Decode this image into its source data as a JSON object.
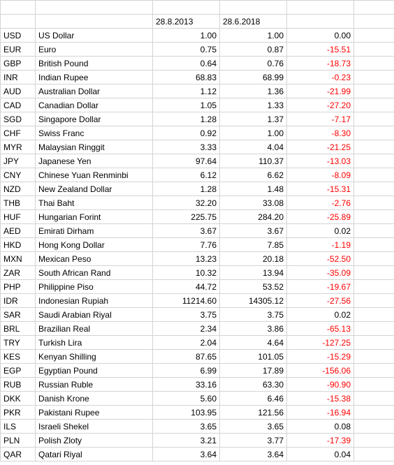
{
  "columns": {
    "code_width": 50,
    "name_width": 168,
    "val_width": 96,
    "diff_width": 96,
    "tail_width": 58
  },
  "header": {
    "date1": "28.8.2013",
    "date2": "28.6.2018"
  },
  "colors": {
    "border": "#d4d4d4",
    "negative": "#ff0000",
    "text": "#000000",
    "background": "#ffffff"
  },
  "fontsize": 12,
  "rows": [
    {
      "code": "USD",
      "name": "US Dollar",
      "v1": "1.00",
      "v2": "1.00",
      "diff": "0.00"
    },
    {
      "code": "EUR",
      "name": "Euro",
      "v1": "0.75",
      "v2": "0.87",
      "diff": "-15.51"
    },
    {
      "code": "GBP",
      "name": "British Pound",
      "v1": "0.64",
      "v2": "0.76",
      "diff": "-18.73"
    },
    {
      "code": "INR",
      "name": "Indian Rupee",
      "v1": "68.83",
      "v2": "68.99",
      "diff": "-0.23"
    },
    {
      "code": "AUD",
      "name": "Australian Dollar",
      "v1": "1.12",
      "v2": "1.36",
      "diff": "-21.99"
    },
    {
      "code": "CAD",
      "name": "Canadian Dollar",
      "v1": "1.05",
      "v2": "1.33",
      "diff": "-27.20"
    },
    {
      "code": "SGD",
      "name": "Singapore Dollar",
      "v1": "1.28",
      "v2": "1.37",
      "diff": "-7.17"
    },
    {
      "code": "CHF",
      "name": "Swiss Franc",
      "v1": "0.92",
      "v2": "1.00",
      "diff": "-8.30"
    },
    {
      "code": "MYR",
      "name": "Malaysian Ringgit",
      "v1": "3.33",
      "v2": "4.04",
      "diff": "-21.25"
    },
    {
      "code": "JPY",
      "name": "Japanese Yen",
      "v1": "97.64",
      "v2": "110.37",
      "diff": "-13.03"
    },
    {
      "code": "CNY",
      "name": "Chinese Yuan Renminbi",
      "v1": "6.12",
      "v2": "6.62",
      "diff": "-8.09"
    },
    {
      "code": "NZD",
      "name": "New Zealand Dollar",
      "v1": "1.28",
      "v2": "1.48",
      "diff": "-15.31"
    },
    {
      "code": "THB",
      "name": "Thai Baht",
      "v1": "32.20",
      "v2": "33.08",
      "diff": "-2.76"
    },
    {
      "code": "HUF",
      "name": "Hungarian Forint",
      "v1": "225.75",
      "v2": "284.20",
      "diff": "-25.89"
    },
    {
      "code": "AED",
      "name": "Emirati Dirham",
      "v1": "3.67",
      "v2": "3.67",
      "diff": "0.02"
    },
    {
      "code": "HKD",
      "name": "Hong Kong Dollar",
      "v1": "7.76",
      "v2": "7.85",
      "diff": "-1.19"
    },
    {
      "code": "MXN",
      "name": "Mexican Peso",
      "v1": "13.23",
      "v2": "20.18",
      "diff": "-52.50"
    },
    {
      "code": "ZAR",
      "name": "South African Rand",
      "v1": "10.32",
      "v2": "13.94",
      "diff": "-35.09"
    },
    {
      "code": "PHP",
      "name": "Philippine Piso",
      "v1": "44.72",
      "v2": "53.52",
      "diff": "-19.67"
    },
    {
      "code": "IDR",
      "name": "Indonesian Rupiah",
      "v1": "11214.60",
      "v2": "14305.12",
      "diff": "-27.56"
    },
    {
      "code": "SAR",
      "name": "Saudi Arabian Riyal",
      "v1": "3.75",
      "v2": "3.75",
      "diff": "0.02"
    },
    {
      "code": "BRL",
      "name": "Brazilian Real",
      "v1": "2.34",
      "v2": "3.86",
      "diff": "-65.13"
    },
    {
      "code": "TRY",
      "name": "Turkish Lira",
      "v1": "2.04",
      "v2": "4.64",
      "diff": "-127.25"
    },
    {
      "code": "KES",
      "name": "Kenyan Shilling",
      "v1": "87.65",
      "v2": "101.05",
      "diff": "-15.29"
    },
    {
      "code": "EGP",
      "name": "Egyptian Pound",
      "v1": "6.99",
      "v2": "17.89",
      "diff": "-156.06"
    },
    {
      "code": "RUB",
      "name": "Russian Ruble",
      "v1": "33.16",
      "v2": "63.30",
      "diff": "-90.90"
    },
    {
      "code": "DKK",
      "name": "Danish Krone",
      "v1": "5.60",
      "v2": "6.46",
      "diff": "-15.38"
    },
    {
      "code": "PKR",
      "name": "Pakistani Rupee",
      "v1": "103.95",
      "v2": "121.56",
      "diff": "-16.94"
    },
    {
      "code": "ILS",
      "name": "Israeli Shekel",
      "v1": "3.65",
      "v2": "3.65",
      "diff": "0.08"
    },
    {
      "code": "PLN",
      "name": "Polish Zloty",
      "v1": "3.21",
      "v2": "3.77",
      "diff": "-17.39"
    },
    {
      "code": "QAR",
      "name": "Qatari Riyal",
      "v1": "3.64",
      "v2": "3.64",
      "diff": "0.04"
    }
  ]
}
